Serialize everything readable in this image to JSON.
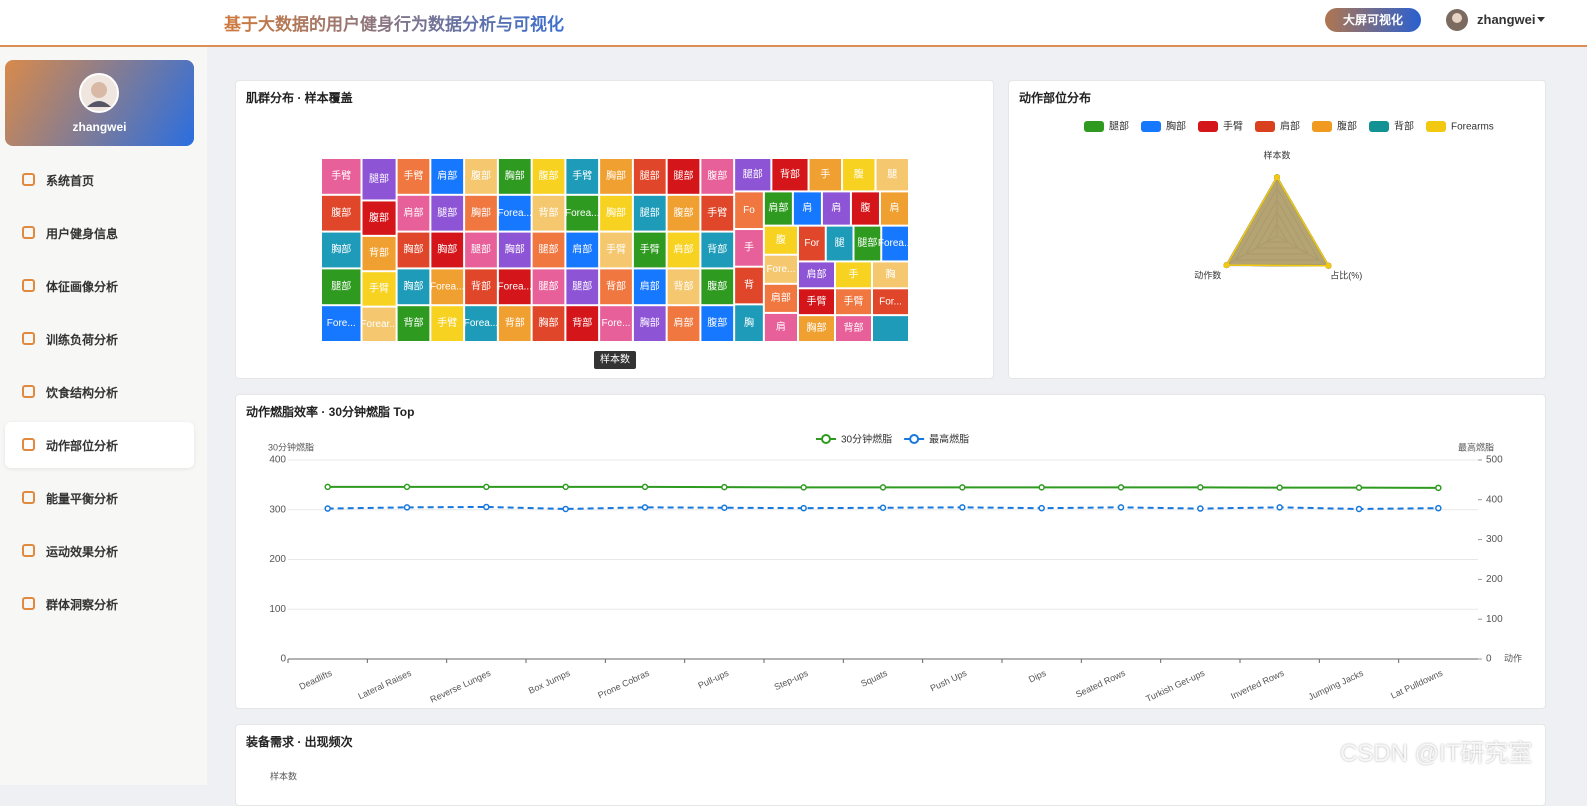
{
  "header": {
    "title": "基于大数据的用户健身行为数据分析与可视化",
    "button": "大屏可视化",
    "user": "zhangwei"
  },
  "sidebar": {
    "user": "zhangwei",
    "active": 5,
    "menu": [
      "系统首页",
      "用户健身信息",
      "体征画像分析",
      "训练负荷分析",
      "饮食结构分析",
      "动作部位分析",
      "能量平衡分析",
      "运动效果分析",
      "群体洞察分析"
    ]
  },
  "chart_data": [
    {
      "type": "treemap",
      "title": "肌群分布 · 样本覆盖",
      "series_name": "样本数",
      "colors": [
        "#e8609a",
        "#e0462a",
        "#1e9bb8",
        "#2e9a1f",
        "#1677ff",
        "#8e54d6",
        "#d4161b",
        "#f0a030",
        "#f8d220",
        "#f5c870",
        "#f07840"
      ],
      "categories": [
        "手臂",
        "腹部",
        "胸部",
        "腿部",
        "Fore...",
        "腿部",
        "腹部",
        "背部",
        "手臂",
        "Forear...",
        "手臂",
        "肩部",
        "胸部",
        "胸部",
        "背部",
        "肩部",
        "腿部",
        "胸部",
        "Forea...",
        "手臂",
        "腹部",
        "胸部",
        "腿部",
        "背部",
        "Forea...",
        "胸部",
        "Forea...",
        "胸部",
        "Forea...",
        "背部",
        "腹部",
        "背部",
        "腿部",
        "腿部",
        "胸部",
        "手臂",
        "Forea...",
        "肩部",
        "腿部",
        "背部",
        "胸部",
        "胸部",
        "手臂",
        "背部",
        "Fore...",
        "腿部",
        "腿部",
        "手臂",
        "肩部",
        "胸部",
        "腿部",
        "腹部",
        "肩部",
        "背部",
        "肩部",
        "腹部",
        "手臂",
        "背部",
        "腹部",
        "腹部",
        "腿部",
        "背部",
        "手",
        "腹",
        "腿",
        "Fo",
        "手",
        "背",
        "胸",
        "肩部",
        "肩",
        "肩",
        "腹",
        "肩",
        "腹",
        "Fore...",
        "肩部",
        "肩",
        "For",
        "腿",
        "腿部",
        "Forea...",
        "肩部",
        "手臂",
        "胸部",
        "手",
        "胸",
        "手臂",
        "背部",
        "For...",
        null
      ],
      "values": [
        12,
        12,
        12,
        12,
        12,
        12,
        10,
        10,
        10,
        10,
        10,
        10,
        10,
        10,
        10,
        10,
        10,
        10,
        10,
        10,
        10,
        10,
        10,
        10,
        10,
        10,
        10,
        10,
        10,
        10,
        10,
        10,
        10,
        10,
        10,
        10,
        10,
        10,
        10,
        10,
        10,
        10,
        10,
        10,
        10,
        10,
        10,
        10,
        10,
        10,
        10,
        10,
        10,
        10,
        10,
        10,
        10,
        10,
        10,
        10,
        10,
        10,
        9,
        9,
        9,
        9,
        9,
        9,
        9,
        8,
        8,
        8,
        8,
        8,
        8,
        8,
        8,
        8,
        8,
        8,
        8,
        8,
        8,
        8,
        8,
        8,
        8,
        8,
        8,
        8,
        8
      ]
    },
    {
      "type": "radar",
      "title": "动作部位分布",
      "indicators": [
        "样本数",
        "占比(%)",
        "动作数"
      ],
      "rlim": [
        0,
        100
      ],
      "series": [
        {
          "name": "腿部",
          "color": "#2e9a1f",
          "values": [
            98,
            99,
            97
          ]
        },
        {
          "name": "胸部",
          "color": "#1677ff",
          "values": [
            98,
            99,
            97
          ]
        },
        {
          "name": "手臂",
          "color": "#d4161b",
          "values": [
            98,
            99,
            97
          ]
        },
        {
          "name": "肩部",
          "color": "#d9411e",
          "values": [
            98,
            99,
            97
          ]
        },
        {
          "name": "腹部",
          "color": "#f09a1f",
          "values": [
            98,
            99,
            97
          ]
        },
        {
          "name": "背部",
          "color": "#129294",
          "values": [
            98,
            99,
            97
          ]
        },
        {
          "name": "Forearms",
          "color": "#f2c811",
          "values": [
            98,
            99,
            97
          ]
        }
      ]
    },
    {
      "type": "line",
      "title": "动作燃脂效率 · 30分钟燃脂 Top",
      "y_label": "30分钟燃脂",
      "y2_label": "最高燃脂",
      "x_label": "动作",
      "categories": [
        "Deadlifts",
        "Lateral Raises",
        "Reverse Lunges",
        "Box Jumps",
        "Prone Cobras",
        "Pull-ups",
        "Step-ups",
        "Squats",
        "Push Ups",
        "Dips",
        "Seated Rows",
        "Turkish Get-ups",
        "Inverted Rows",
        "Jumping Jacks",
        "Lat Pulldowns"
      ],
      "ylim": [
        0,
        400
      ],
      "yticks": [
        0,
        100,
        200,
        300,
        400
      ],
      "y2lim": [
        0,
        500
      ],
      "y2ticks": [
        0,
        100,
        200,
        300,
        400,
        500
      ],
      "grid": true,
      "series": [
        {
          "name": "30分钟燃脂",
          "color": "#2e9a1f",
          "line_style": "solid",
          "values": [
            346,
            346,
            346,
            346,
            346,
            345.5,
            345,
            345,
            345,
            345,
            345,
            345,
            344.5,
            344.5,
            344
          ]
        },
        {
          "name": "最高燃脂",
          "color": "#1677dd",
          "line_style": "dashed",
          "axis": "y2",
          "values": [
            378,
            381,
            382,
            377,
            381,
            380,
            379,
            380,
            381,
            379,
            381,
            378,
            381,
            377,
            379
          ]
        }
      ]
    },
    {
      "type": "bar",
      "title": "装备需求 · 出现频次",
      "y_label": "样本数"
    }
  ],
  "watermark": "CSDN @IT研究室"
}
